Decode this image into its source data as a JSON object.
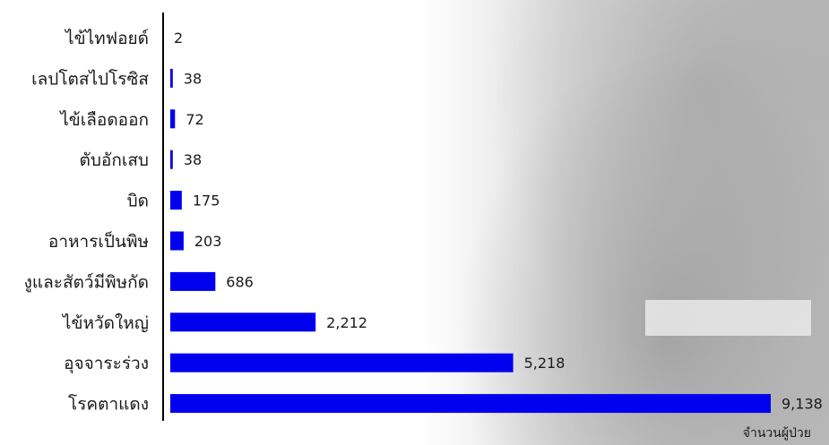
{
  "chart_data": {
    "type": "bar",
    "orientation": "horizontal",
    "categories": [
      "ไข้ไทฟอยด์",
      "เลปโตสไปโรซิส",
      "ไข้เลือดออก",
      "ตับอักเสบ",
      "บิด",
      "อาหารเป็นพิษ",
      "งูและสัตว์มีพิษกัด",
      "ไข้หวัดใหญ่",
      "อุจจาระร่วง",
      "โรคตาแดง"
    ],
    "values": [
      2,
      38,
      72,
      38,
      175,
      203,
      686,
      2212,
      5218,
      9138
    ],
    "value_labels": [
      "2",
      "38",
      "72",
      "38",
      "175",
      "203",
      "686",
      "2,212",
      "5,218",
      "9,138"
    ],
    "xlabel": "จำนวนผู้ป่วย",
    "ylabel": "",
    "title": "",
    "xlim": [
      0,
      9138
    ],
    "bar_color": "#0000ee",
    "grid": false,
    "legend": "none"
  }
}
